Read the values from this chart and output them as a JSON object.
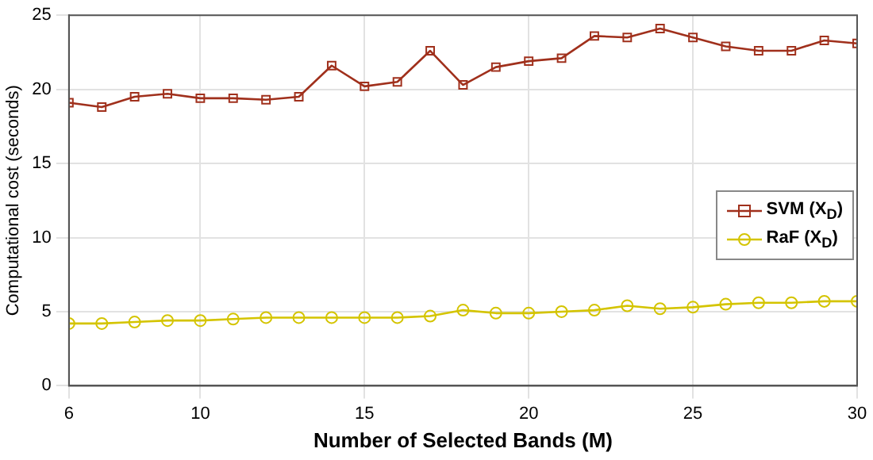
{
  "chart_data": {
    "type": "line",
    "xlabel": "Number of Selected Bands (M)",
    "ylabel": "Computational cost (seconds)",
    "x": [
      6,
      7,
      8,
      9,
      10,
      11,
      12,
      13,
      14,
      15,
      16,
      17,
      18,
      19,
      20,
      21,
      22,
      23,
      24,
      25,
      26,
      27,
      28,
      29,
      30
    ],
    "series": [
      {
        "name": "SVM (X$_{D}$)",
        "color": "#a0301c",
        "marker": "square",
        "values": [
          19.1,
          18.8,
          19.5,
          19.7,
          19.4,
          19.4,
          19.3,
          19.5,
          21.6,
          20.2,
          20.5,
          22.6,
          20.3,
          21.5,
          21.9,
          22.1,
          23.6,
          23.5,
          24.1,
          23.5,
          22.9,
          22.6,
          22.6,
          23.3,
          23.1
        ]
      },
      {
        "name": "RaF (X$_{D}$)",
        "color": "#d4c400",
        "marker": "circle",
        "values": [
          4.2,
          4.2,
          4.3,
          4.4,
          4.4,
          4.5,
          4.6,
          4.6,
          4.6,
          4.6,
          4.6,
          4.7,
          5.1,
          4.9,
          4.9,
          5.0,
          5.1,
          5.4,
          5.2,
          5.3,
          5.5,
          5.6,
          5.6,
          5.7,
          5.7
        ]
      }
    ],
    "xlim": [
      6,
      30
    ],
    "xticks": [
      6,
      10,
      15,
      20,
      25,
      30
    ],
    "ylim": [
      0,
      25
    ],
    "yticks": [
      0,
      5,
      10,
      15,
      20,
      25
    ],
    "grid": true,
    "legend": "right",
    "line_style": "solid"
  }
}
